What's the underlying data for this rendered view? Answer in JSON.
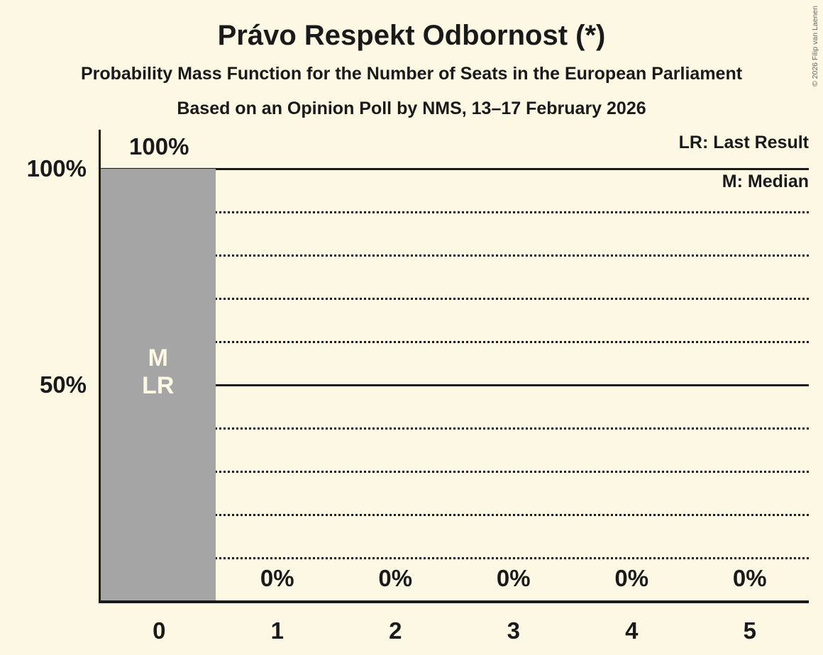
{
  "title": "Právo Respekt Odbornost (*)",
  "subtitle1": "Probability Mass Function for the Number of Seats in the European Parliament",
  "subtitle2": "Based on an Opinion Poll by NMS, 13–17 February 2026",
  "copyright": "© 2026 Filip van Laenen",
  "legend": {
    "lr": "LR: Last Result",
    "m": "M: Median"
  },
  "y_axis": {
    "labels": [
      "100%",
      "50%"
    ]
  },
  "colors": {
    "background": "#FCF8E3",
    "bar": "#A5A5A5",
    "text": "#1A1A1A",
    "bar_annotation_text": "#FCF8E3",
    "copyright_text": "#666666"
  },
  "chart_data": {
    "type": "bar",
    "title": "Právo Respekt Odbornost (*)",
    "categories": [
      "0",
      "1",
      "2",
      "3",
      "4",
      "5"
    ],
    "values": [
      100,
      0,
      0,
      0,
      0,
      0
    ],
    "value_labels": [
      "100%",
      "0%",
      "0%",
      "0%",
      "0%",
      "0%"
    ],
    "ylim": [
      0,
      100
    ],
    "gridlines_solid_pct": [
      100,
      50
    ],
    "gridlines_dotted_pct": [
      90,
      80,
      70,
      60,
      40,
      30,
      20,
      10
    ],
    "annotations": [
      {
        "category_index": 0,
        "lines": [
          "M",
          "LR"
        ]
      }
    ],
    "legend_position": "top-right",
    "grid": "horizontal-only"
  }
}
